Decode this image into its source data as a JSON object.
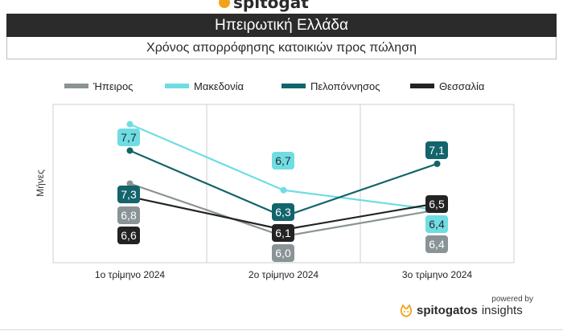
{
  "header": {
    "brand_partial": "spitogat",
    "title": "Ηπειρωτική Ελλάδα",
    "subtitle": "Χρόνος απορρόφησης κατοικιών προς πώληση"
  },
  "footer": {
    "powered_by": "powered by",
    "brand_name": "spitogatos",
    "brand_suffix": "insights"
  },
  "colors": {
    "Ήπειρος": "#8a9396",
    "Μακεδονία": "#6fdde3",
    "Πελοπόννησος": "#13646b",
    "Θεσσαλία": "#232323",
    "brand_orange": "#f2a31b"
  },
  "chart_data": {
    "type": "line",
    "title": "Χρόνος απορρόφησης κατοικιών προς πώληση",
    "ylabel": "Μήνες",
    "xlabel": "",
    "categories": [
      "1ο τρίμηνο 2024",
      "2ο τρίμηνο 2024",
      "3ο τρίμηνο 2024"
    ],
    "ylim": [
      5.6,
      8.0
    ],
    "series": [
      {
        "name": "Ήπειρος",
        "values": [
          6.8,
          6.0,
          6.4
        ],
        "labels": [
          "6,8",
          "6,0",
          "6,4"
        ]
      },
      {
        "name": "Μακεδονία",
        "values": [
          7.7,
          6.7,
          6.4
        ],
        "labels": [
          "7,7",
          "6,7",
          "6,4"
        ]
      },
      {
        "name": "Πελοπόννησος",
        "values": [
          7.3,
          6.3,
          7.1
        ],
        "labels": [
          "7,3",
          "6,3",
          "7,1"
        ]
      },
      {
        "name": "Θεσσαλία",
        "values": [
          6.6,
          6.1,
          6.5
        ],
        "labels": [
          "6,6",
          "6,1",
          "6,5"
        ]
      }
    ],
    "legend": "top",
    "grid": "vertical"
  }
}
